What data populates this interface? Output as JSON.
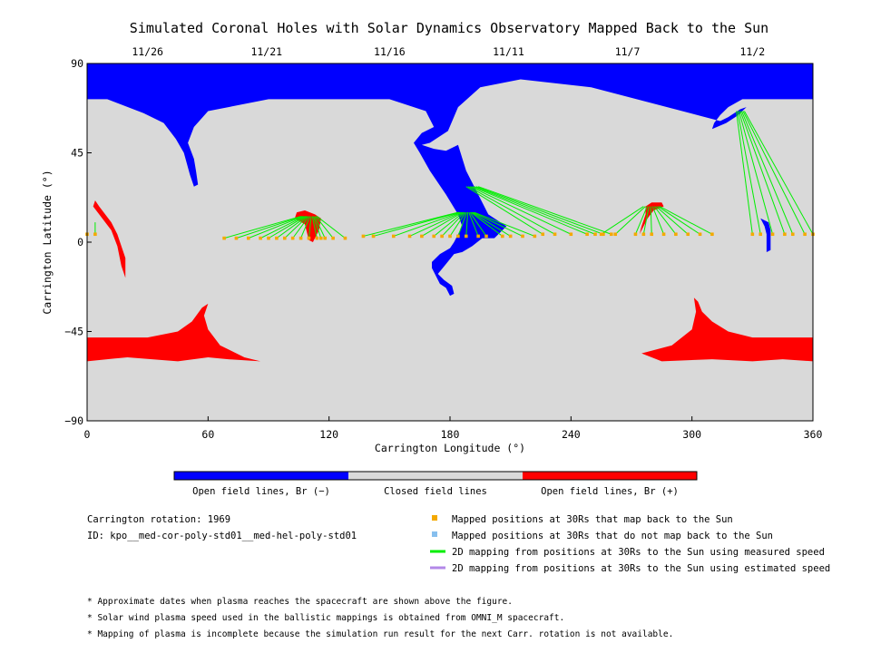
{
  "chart_data": {
    "type": "map",
    "title": "Simulated Coronal Holes with Solar Dynamics Observatory Mapped Back to the Sun",
    "xlabel": "Carrington Longitude (°)",
    "ylabel": "Carrington Latitude (°)",
    "xlim": [
      0,
      360
    ],
    "ylim": [
      -90,
      90
    ],
    "x_ticks": [
      0,
      60,
      120,
      180,
      240,
      300,
      360
    ],
    "y_ticks": [
      -90,
      -45,
      0,
      45,
      90
    ],
    "date_ticks": [
      {
        "label": "11/26",
        "lon": 30
      },
      {
        "label": "11/21",
        "lon": 89
      },
      {
        "label": "11/16",
        "lon": 150
      },
      {
        "label": "11/11",
        "lon": 209
      },
      {
        "label": "11/7",
        "lon": 268
      },
      {
        "label": "11/2",
        "lon": 330
      }
    ],
    "colors": {
      "open_negative": "#0000ff",
      "closed": "#d9d9d9",
      "open_positive": "#ff0000",
      "measured_speed": "#00ee00",
      "estimated_speed": "#b388e8",
      "mapped_back": "#f4a900",
      "not_mapped_back": "#87bfee"
    },
    "colorbar": [
      {
        "label": "Open field lines, Br (−)",
        "color": "#0000ff"
      },
      {
        "label": "Closed field lines",
        "color": "#d9d9d9"
      },
      {
        "label": "Open field lines, Br (+)",
        "color": "#ff0000"
      }
    ],
    "regions_negative": [
      [
        [
          0,
          90
        ],
        [
          360,
          90
        ],
        [
          360,
          72
        ],
        [
          325,
          72
        ],
        [
          318,
          68
        ],
        [
          314,
          64
        ],
        [
          311,
          60
        ],
        [
          310,
          57
        ],
        [
          317,
          60
        ],
        [
          323,
          64
        ],
        [
          327,
          68
        ],
        [
          324,
          67
        ],
        [
          318,
          63
        ],
        [
          314,
          61
        ],
        [
          250,
          78
        ],
        [
          215,
          82
        ],
        [
          195,
          78
        ],
        [
          184,
          68
        ],
        [
          179,
          56
        ],
        [
          170,
          50
        ],
        [
          166,
          49
        ],
        [
          172,
          47
        ],
        [
          178,
          46
        ],
        [
          184,
          49
        ],
        [
          188,
          36
        ],
        [
          194,
          24
        ],
        [
          199,
          14
        ],
        [
          208,
          8
        ],
        [
          202,
          2
        ],
        [
          196,
          2
        ],
        [
          191,
          -2
        ],
        [
          186,
          -5
        ],
        [
          182,
          -6
        ],
        [
          178,
          -11
        ],
        [
          174,
          -16
        ],
        [
          177,
          -19
        ],
        [
          181,
          -22
        ],
        [
          182,
          -26
        ],
        [
          180,
          -27
        ],
        [
          178,
          -23
        ],
        [
          175,
          -21
        ],
        [
          171,
          -13
        ],
        [
          171,
          -10
        ],
        [
          175,
          -6
        ],
        [
          180,
          -3
        ],
        [
          182,
          0
        ],
        [
          186,
          8
        ],
        [
          184,
          14
        ],
        [
          178,
          24
        ],
        [
          170,
          36
        ],
        [
          165,
          45
        ],
        [
          162,
          50
        ],
        [
          166,
          55
        ],
        [
          172,
          58
        ],
        [
          168,
          66
        ],
        [
          150,
          72
        ],
        [
          90,
          72
        ],
        [
          60,
          66
        ],
        [
          53,
          58
        ],
        [
          50,
          50
        ],
        [
          53,
          42
        ],
        [
          54,
          36
        ],
        [
          55,
          29
        ],
        [
          53,
          28
        ],
        [
          51,
          34
        ],
        [
          48,
          45
        ],
        [
          44,
          52
        ],
        [
          38,
          60
        ],
        [
          28,
          65
        ],
        [
          10,
          72
        ],
        [
          0,
          72
        ]
      ],
      [
        [
          334,
          12
        ],
        [
          338,
          10
        ],
        [
          339,
          6
        ],
        [
          339,
          -4
        ],
        [
          337,
          -5
        ],
        [
          337,
          4
        ],
        [
          336,
          8
        ]
      ]
    ],
    "regions_positive": [
      [
        [
          0,
          -48
        ],
        [
          30,
          -48
        ],
        [
          45,
          -45
        ],
        [
          52,
          -40
        ],
        [
          57,
          -33
        ],
        [
          60,
          -31
        ],
        [
          58,
          -37
        ],
        [
          60,
          -44
        ],
        [
          66,
          -52
        ],
        [
          78,
          -58
        ],
        [
          86,
          -60
        ],
        [
          70,
          -59
        ],
        [
          60,
          -58
        ],
        [
          45,
          -60
        ],
        [
          20,
          -58
        ],
        [
          0,
          -60
        ]
      ],
      [
        [
          360,
          -48
        ],
        [
          330,
          -48
        ],
        [
          318,
          -45
        ],
        [
          310,
          -40
        ],
        [
          305,
          -35
        ],
        [
          303,
          -30
        ],
        [
          301,
          -28
        ],
        [
          302,
          -35
        ],
        [
          300,
          -44
        ],
        [
          290,
          -52
        ],
        [
          275,
          -56
        ],
        [
          285,
          -60
        ],
        [
          310,
          -59
        ],
        [
          330,
          -60
        ],
        [
          345,
          -59
        ],
        [
          360,
          -60
        ]
      ],
      [
        [
          104,
          15
        ],
        [
          108,
          16
        ],
        [
          113,
          14
        ],
        [
          116,
          12
        ],
        [
          115,
          6
        ],
        [
          112,
          0
        ],
        [
          110,
          1
        ],
        [
          108,
          9
        ],
        [
          103,
          12
        ]
      ],
      [
        [
          280,
          20
        ],
        [
          285,
          20
        ],
        [
          286,
          18
        ],
        [
          281,
          16
        ],
        [
          278,
          12
        ],
        [
          276,
          8
        ],
        [
          274,
          4
        ],
        [
          275,
          8
        ],
        [
          277,
          14
        ],
        [
          277,
          18
        ]
      ],
      [
        [
          4,
          21
        ],
        [
          6,
          18
        ],
        [
          12,
          10
        ],
        [
          15,
          4
        ],
        [
          19,
          -8
        ],
        [
          19,
          -18
        ],
        [
          17,
          -12
        ],
        [
          15,
          -2
        ],
        [
          12,
          6
        ],
        [
          6,
          14
        ],
        [
          3,
          18
        ]
      ]
    ],
    "mapping_groups": [
      {
        "foot_lat": 13,
        "foot_lon_range": [
          106,
          114
        ],
        "points_lon": [
          68,
          74,
          80,
          86,
          90,
          94,
          98,
          102,
          106,
          110,
          114,
          116,
          118,
          122,
          128
        ],
        "points_lat": 2
      },
      {
        "foot_lat": 15,
        "foot_lon_range": [
          184,
          192
        ],
        "points_lon": [
          137,
          142,
          152,
          160,
          166,
          172,
          176,
          180,
          184,
          188,
          194,
          198,
          206,
          210,
          216,
          222
        ],
        "points_lat": 3
      },
      {
        "foot_lat": 28,
        "foot_lon_range": [
          188,
          194
        ],
        "points_lon": [
          226,
          232,
          240,
          248,
          252,
          256,
          260
        ],
        "points_lat": 4
      },
      {
        "foot_lat": 18,
        "foot_lon_range": [
          276,
          284
        ],
        "points_lon": [
          255,
          262,
          272,
          276,
          280,
          286,
          292,
          298,
          304,
          310
        ],
        "points_lat": 4
      },
      {
        "foot_lat": 66,
        "foot_lon_range": [
          322,
          326
        ],
        "points_lon": [
          330,
          334,
          340,
          346,
          350,
          356,
          360
        ],
        "points_lat": 4
      },
      {
        "foot_lat": 10,
        "foot_lon_range": [
          0,
          4
        ],
        "points_lon": [
          0,
          4
        ],
        "points_lat": 4
      }
    ]
  },
  "info": {
    "rotation": "Carrington rotation: 1969",
    "run_id": "ID: kpo__med-cor-poly-std01__med-hel-poly-std01"
  },
  "legend": [
    {
      "marker": "square",
      "color": "#f4a900",
      "label": "Mapped positions at 30Rs that map back to the Sun"
    },
    {
      "marker": "square",
      "color": "#87bfee",
      "label": "Mapped positions at 30Rs that do not map back to the Sun"
    },
    {
      "marker": "line",
      "color": "#00ee00",
      "label": "2D mapping from positions at 30Rs to the Sun using measured speed"
    },
    {
      "marker": "line",
      "color": "#b388e8",
      "label": "2D mapping from positions at 30Rs to the Sun using estimated speed"
    }
  ],
  "notes": [
    "* Approximate dates when plasma reaches the spacecraft are shown above the figure.",
    "* Solar wind plasma speed used in the ballistic mappings is obtained from OMNI_M spacecraft.",
    "* Mapping of plasma is incomplete because the simulation run result for the next Carr. rotation is not available."
  ]
}
